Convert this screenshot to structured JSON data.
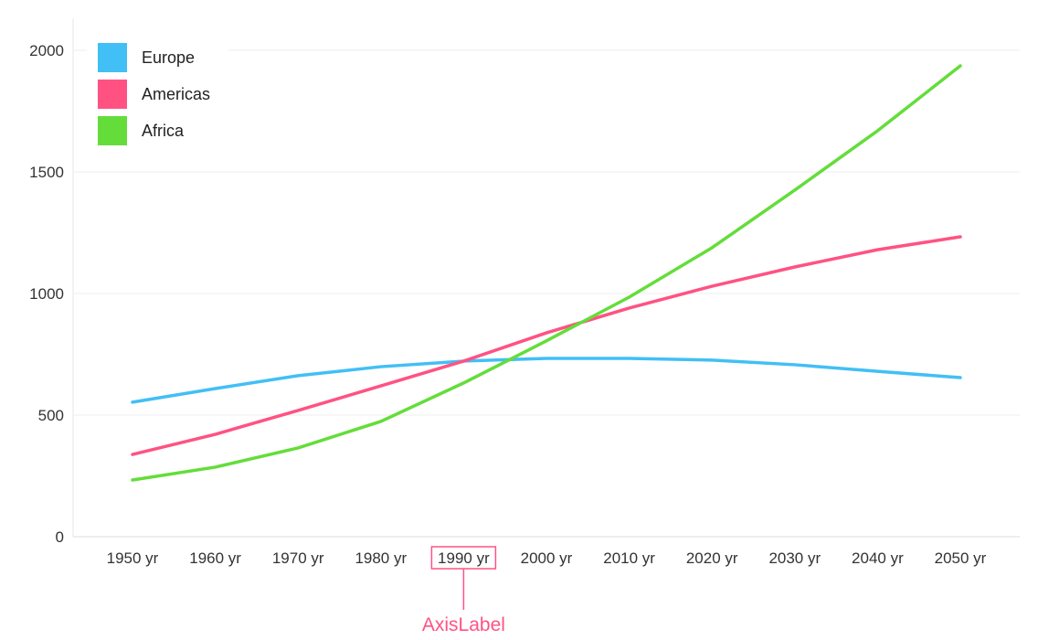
{
  "chart_data": {
    "type": "line",
    "title": "",
    "xlabel": "",
    "ylabel": "",
    "categories": [
      "1950 yr",
      "1960 yr",
      "1970 yr",
      "1980 yr",
      "1990 yr",
      "2000 yr",
      "2010 yr",
      "2020 yr",
      "2030 yr",
      "2040 yr",
      "2050 yr"
    ],
    "ylim": [
      0,
      2000
    ],
    "yticks": [
      "0",
      "500",
      "1000",
      "1500",
      "2000"
    ],
    "grid": "horizontal",
    "legend_position": "top-left",
    "series": [
      {
        "name": "Europe",
        "color": "#42bff5",
        "values": [
          553,
          609,
          662,
          699,
          722,
          733,
          733,
          726,
          707,
          680,
          654
        ]
      },
      {
        "name": "Americas",
        "color": "#ff5283",
        "values": [
          338,
          421,
          519,
          620,
          722,
          838,
          940,
          1030,
          1109,
          1180,
          1233
        ]
      },
      {
        "name": "Africa",
        "color": "#64dd3a",
        "values": [
          233,
          286,
          365,
          474,
          632,
          805,
          985,
          1188,
          1425,
          1669,
          1936
        ]
      }
    ],
    "annotation": {
      "text": "AxisLabel",
      "target_category": "1990 yr",
      "color": "#ff5283"
    }
  }
}
